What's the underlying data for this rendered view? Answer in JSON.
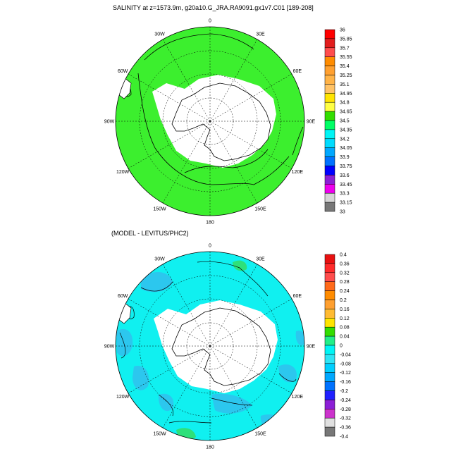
{
  "panel1": {
    "title": "SALINITY at z=1573.9m, g20a10.G_JRA.RA9091.gx1v7.C01 [189-208]",
    "lon_labels": [
      "0",
      "30E",
      "60E",
      "90E",
      "120E",
      "150E",
      "180",
      "150W",
      "120W",
      "90W",
      "60W",
      "30W"
    ],
    "colorbar": {
      "labels": [
        "36",
        "35.85",
        "35.7",
        "35.55",
        "35.4",
        "35.25",
        "35.1",
        "34.95",
        "34.8",
        "34.65",
        "34.5",
        "34.35",
        "34.2",
        "34.05",
        "33.9",
        "33.75",
        "33.6",
        "33.45",
        "33.3",
        "33.15",
        "33"
      ],
      "colors": [
        "#ff0000",
        "#e21d1d",
        "#ff4d4d",
        "#ff8c00",
        "#ffa030",
        "#ffb347",
        "#ffc266",
        "#ffe400",
        "#ffff44",
        "#33dd00",
        "#00ff66",
        "#00f5f5",
        "#00dcff",
        "#00a8ff",
        "#0072ff",
        "#0000ff",
        "#8c1fd6",
        "#ee00ee",
        "#d6d6d6",
        "#777777"
      ]
    },
    "field_fill": "#3cef2e"
  },
  "panel2": {
    "title": "(MODEL - LEVITUS/PHC2)",
    "lon_labels": [
      "0",
      "30E",
      "60E",
      "90E",
      "120E",
      "150E",
      "180",
      "150W",
      "120W",
      "90W",
      "60W",
      "30W"
    ],
    "colorbar": {
      "labels": [
        "0.4",
        "0.36",
        "0.32",
        "0.28",
        "0.24",
        "0.2",
        "0.16",
        "0.12",
        "0.08",
        "0.04",
        "0",
        "-0.04",
        "-0.08",
        "-0.12",
        "-0.16",
        "-0.2",
        "-0.24",
        "-0.28",
        "-0.32",
        "-0.36",
        "-0.4"
      ],
      "colors": [
        "#e81010",
        "#ff2a2a",
        "#ff4d4d",
        "#ff6a1a",
        "#ff8c00",
        "#ffa030",
        "#ffbb33",
        "#ffe400",
        "#33dd00",
        "#22ee88",
        "#00f5f5",
        "#2ee5f5",
        "#00cfff",
        "#00a8ff",
        "#0072ff",
        "#2020ff",
        "#8c1fd6",
        "#cc33cc",
        "#e0e0e0",
        "#777777"
      ]
    },
    "field_fill": "#10f0f0",
    "patch_fill": "#2cc7ee"
  }
}
